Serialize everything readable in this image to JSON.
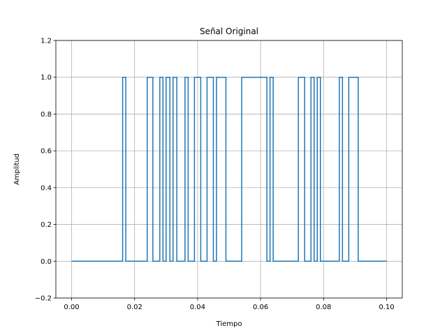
{
  "chart_data": {
    "type": "line",
    "title": "Señal Original",
    "xlabel": "Tiempo",
    "ylabel": "Amplitud",
    "xlim": [
      -0.005,
      0.105
    ],
    "ylim": [
      -0.2,
      1.2
    ],
    "xticks": [
      0.0,
      0.02,
      0.04,
      0.06,
      0.08,
      0.1
    ],
    "xtick_labels": [
      "0.00",
      "0.02",
      "0.04",
      "0.06",
      "0.08",
      "0.10"
    ],
    "yticks": [
      -0.2,
      0.0,
      0.2,
      0.4,
      0.6,
      0.8,
      1.0,
      1.2
    ],
    "ytick_labels": [
      "−0.2",
      "0.0",
      "0.2",
      "0.4",
      "0.6",
      "0.8",
      "1.0",
      "1.2"
    ],
    "grid": true,
    "line_color": "#1f77b4",
    "series": [
      {
        "step": "post",
        "x": [
          0.0,
          0.0162,
          0.0172,
          0.024,
          0.0258,
          0.028,
          0.029,
          0.03,
          0.0312,
          0.0322,
          0.0334,
          0.036,
          0.037,
          0.039,
          0.041,
          0.043,
          0.045,
          0.046,
          0.049,
          0.054,
          0.062,
          0.063,
          0.064,
          0.072,
          0.074,
          0.076,
          0.077,
          0.078,
          0.079,
          0.085,
          0.086,
          0.088,
          0.091,
          0.1
        ],
        "y": [
          0,
          1,
          0,
          1,
          0,
          1,
          0,
          1,
          0,
          1,
          0,
          1,
          0,
          1,
          0,
          1,
          0,
          1,
          0,
          1,
          0,
          1,
          0,
          1,
          0,
          1,
          0,
          1,
          0,
          1,
          0,
          1,
          0,
          0
        ]
      }
    ]
  }
}
